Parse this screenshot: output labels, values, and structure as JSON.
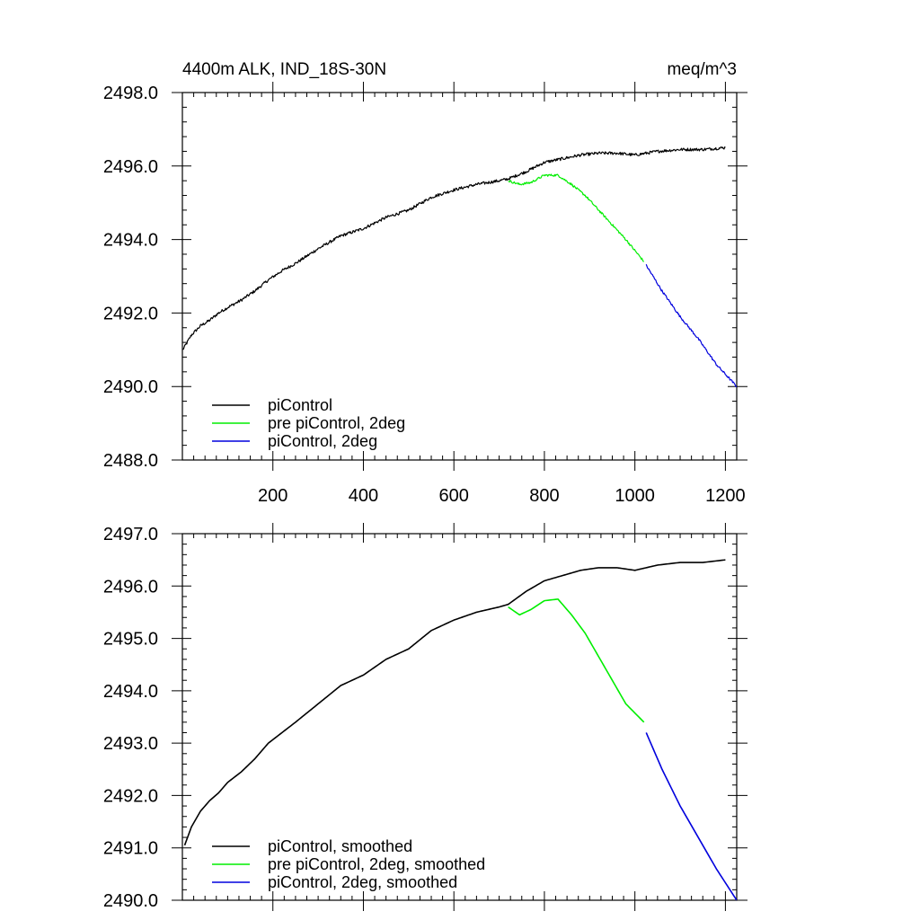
{
  "chart_data": [
    {
      "type": "line",
      "title": "4400m ALK, IND_18S-30N",
      "units": "meq/m^3",
      "xlim": [
        0,
        1225
      ],
      "ylim": [
        2488.0,
        2498.0
      ],
      "xticks": [
        200,
        400,
        600,
        800,
        1000,
        1200
      ],
      "xtick_labels": [
        "200",
        "400",
        "600",
        "800",
        "1000",
        "1200"
      ],
      "yticks": [
        2488.0,
        2490.0,
        2492.0,
        2494.0,
        2496.0,
        2498.0
      ],
      "ytick_labels": [
        "2488.0",
        "2490.0",
        "2492.0",
        "2494.0",
        "2496.0",
        "2498.0"
      ],
      "grid": false,
      "legend_position": "bottom-left",
      "series": [
        {
          "name": "piControl",
          "color": "#000000",
          "noise": 0.04,
          "x": [
            1,
            20,
            40,
            60,
            80,
            100,
            130,
            160,
            190,
            220,
            250,
            300,
            350,
            400,
            450,
            500,
            550,
            600,
            650,
            700,
            720,
            760,
            800,
            840,
            880,
            920,
            960,
            1000,
            1050,
            1100,
            1150,
            1200
          ],
          "y": [
            2491.0,
            2491.4,
            2491.65,
            2491.8,
            2492.0,
            2492.15,
            2492.35,
            2492.6,
            2492.9,
            2493.15,
            2493.35,
            2493.75,
            2494.1,
            2494.3,
            2494.6,
            2494.8,
            2495.15,
            2495.35,
            2495.5,
            2495.6,
            2495.65,
            2495.85,
            2496.1,
            2496.2,
            2496.3,
            2496.35,
            2496.35,
            2496.3,
            2496.4,
            2496.45,
            2496.45,
            2496.5
          ]
        },
        {
          "name": "pre piControl, 2deg",
          "color": "#00ee00",
          "noise": 0.03,
          "x": [
            720,
            745,
            770,
            800,
            830,
            860,
            890,
            920,
            950,
            980,
            1020
          ],
          "y": [
            2495.6,
            2495.5,
            2495.55,
            2495.75,
            2495.75,
            2495.5,
            2495.2,
            2494.8,
            2494.4,
            2494.0,
            2493.4
          ]
        },
        {
          "name": "piControl, 2deg",
          "color": "#0000dd",
          "noise": 0.03,
          "x": [
            1025,
            1060,
            1100,
            1140,
            1180,
            1225
          ],
          "y": [
            2493.3,
            2492.6,
            2491.9,
            2491.3,
            2490.6,
            2490.0
          ]
        }
      ]
    },
    {
      "type": "line",
      "title": "",
      "units": "",
      "xlim": [
        0,
        1225
      ],
      "ylim": [
        2490.0,
        2497.0
      ],
      "xticks": [
        200,
        400,
        600,
        800,
        1000,
        1200
      ],
      "xtick_labels": [],
      "yticks": [
        2490.0,
        2491.0,
        2492.0,
        2493.0,
        2494.0,
        2495.0,
        2496.0,
        2497.0
      ],
      "ytick_labels": [
        "2490.0",
        "2491.0",
        "2492.0",
        "2493.0",
        "2494.0",
        "2495.0",
        "2496.0",
        "2497.0"
      ],
      "grid": false,
      "legend_position": "bottom-left",
      "series": [
        {
          "name": "piControl, smoothed",
          "color": "#000000",
          "noise": 0,
          "x": [
            5,
            20,
            40,
            60,
            80,
            100,
            130,
            160,
            190,
            220,
            250,
            300,
            350,
            400,
            450,
            500,
            550,
            600,
            650,
            700,
            720,
            760,
            800,
            840,
            880,
            920,
            960,
            1000,
            1050,
            1100,
            1150,
            1200
          ],
          "y": [
            2491.05,
            2491.4,
            2491.7,
            2491.9,
            2492.05,
            2492.25,
            2492.45,
            2492.7,
            2493.0,
            2493.2,
            2493.4,
            2493.75,
            2494.1,
            2494.3,
            2494.6,
            2494.8,
            2495.15,
            2495.35,
            2495.5,
            2495.6,
            2495.65,
            2495.9,
            2496.1,
            2496.2,
            2496.3,
            2496.35,
            2496.35,
            2496.3,
            2496.4,
            2496.45,
            2496.45,
            2496.5
          ]
        },
        {
          "name": "pre piControl, 2deg, smoothed",
          "color": "#00ee00",
          "noise": 0,
          "x": [
            720,
            745,
            770,
            800,
            830,
            860,
            890,
            920,
            950,
            980,
            1020
          ],
          "y": [
            2495.6,
            2495.45,
            2495.55,
            2495.72,
            2495.75,
            2495.45,
            2495.1,
            2494.65,
            2494.2,
            2493.75,
            2493.4
          ]
        },
        {
          "name": "piControl, 2deg, smoothed",
          "color": "#0000dd",
          "noise": 0,
          "x": [
            1025,
            1060,
            1100,
            1140,
            1180,
            1225
          ],
          "y": [
            2493.2,
            2492.5,
            2491.8,
            2491.2,
            2490.6,
            2490.0
          ]
        }
      ]
    }
  ]
}
